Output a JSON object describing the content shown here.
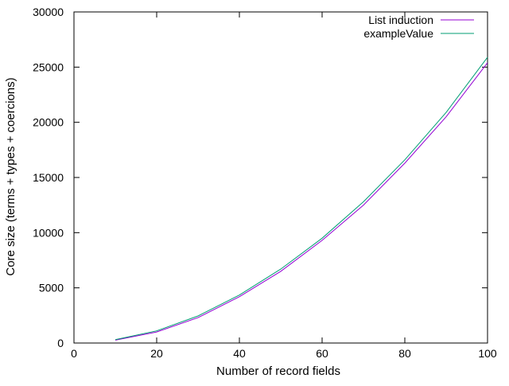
{
  "chart_data": {
    "type": "line",
    "title": "",
    "xlabel": "Number of record fields",
    "ylabel": "Core size (terms + types + coercions)",
    "xlim": [
      0,
      100
    ],
    "ylim": [
      0,
      30000
    ],
    "x_ticks": [
      0,
      20,
      40,
      60,
      80,
      100
    ],
    "y_ticks": [
      0,
      5000,
      10000,
      15000,
      20000,
      25000,
      30000
    ],
    "grid": false,
    "legend_position": "top-right",
    "x": [
      10,
      20,
      30,
      40,
      50,
      60,
      70,
      80,
      90,
      100
    ],
    "series": [
      {
        "name": "List induction",
        "color": "#9400D3",
        "values": [
          260,
          1000,
          2300,
          4200,
          6500,
          9300,
          12500,
          16300,
          20500,
          25400
        ]
      },
      {
        "name": "exampleValue",
        "color": "#009E73",
        "values": [
          300,
          1100,
          2450,
          4350,
          6700,
          9500,
          12800,
          16600,
          20900,
          25900
        ]
      }
    ]
  }
}
